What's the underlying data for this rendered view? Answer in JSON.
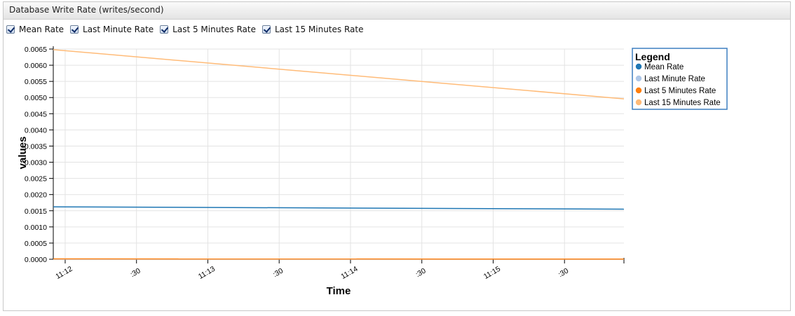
{
  "panel": {
    "title": "Database Write Rate (writes/second)"
  },
  "toggles": [
    {
      "label": "Mean Rate",
      "checked": true
    },
    {
      "label": "Last Minute Rate",
      "checked": true
    },
    {
      "label": "Last 5 Minutes Rate",
      "checked": true
    },
    {
      "label": "Last 15 Minutes Rate",
      "checked": true
    }
  ],
  "chart_data": {
    "type": "line",
    "xlabel": "Time",
    "ylabel": "values",
    "ylim": [
      0,
      0.0065
    ],
    "yticks": [
      "0.0000",
      "0.0005",
      "0.0010",
      "0.0015",
      "0.0020",
      "0.0025",
      "0.0030",
      "0.0035",
      "0.0040",
      "0.0045",
      "0.0050",
      "0.0055",
      "0.0060",
      "0.0065"
    ],
    "xlim": [
      "11:11:55",
      "11:15:55"
    ],
    "xticks": [
      {
        "t": "11:12:00",
        "label": "11:12"
      },
      {
        "t": "11:12:30",
        "label": ":30"
      },
      {
        "t": "11:13:00",
        "label": "11:13"
      },
      {
        "t": "11:13:30",
        "label": ":30"
      },
      {
        "t": "11:14:00",
        "label": "11:14"
      },
      {
        "t": "11:14:30",
        "label": ":30"
      },
      {
        "t": "11:15:00",
        "label": "11:15"
      },
      {
        "t": "11:15:30",
        "label": ":30"
      }
    ],
    "grid": true,
    "legend": {
      "title": "Legend",
      "placement": "right"
    },
    "series": [
      {
        "name": "Mean Rate",
        "color": "#1f77b4",
        "points": [
          [
            "11:11:55",
            0.00162
          ],
          [
            "11:15:55",
            0.00155
          ]
        ]
      },
      {
        "name": "Last Minute Rate",
        "color": "#aec7e8",
        "points": [
          [
            "11:11:55",
            0.0
          ],
          [
            "11:15:55",
            0.0
          ]
        ]
      },
      {
        "name": "Last 5 Minutes Rate",
        "color": "#ff7f0e",
        "points": [
          [
            "11:11:55",
            1e-05
          ],
          [
            "11:15:55",
            5e-06
          ]
        ]
      },
      {
        "name": "Last 15 Minutes Rate",
        "color": "#ffbb78",
        "points": [
          [
            "11:11:55",
            0.00648
          ],
          [
            "11:15:55",
            0.00496
          ]
        ]
      }
    ]
  }
}
